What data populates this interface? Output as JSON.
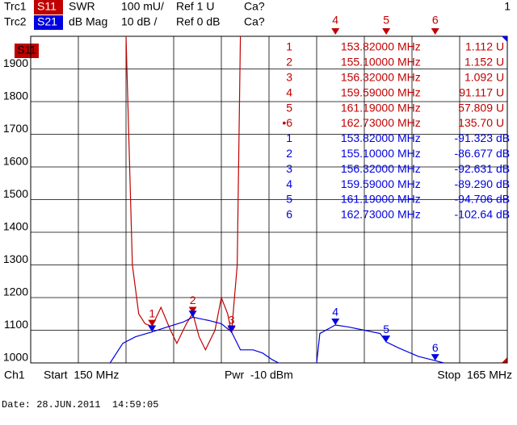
{
  "header": {
    "row1": [
      "Trc1",
      "S11",
      "SWR",
      "100 mU/",
      "Ref 1 U",
      "Ca?"
    ],
    "row2": [
      "Trc2",
      "S21",
      "dB Mag",
      "10 dB /",
      "Ref 0 dB",
      "Ca?"
    ],
    "window": "1"
  },
  "chart_data": {
    "type": "line",
    "trace_label": "S11",
    "xlim": [
      150,
      165
    ],
    "xticks": [
      150,
      151.5,
      153,
      154.5,
      156,
      157.5,
      159,
      160.5,
      162,
      163.5,
      165
    ],
    "ylim": [
      1000,
      2000
    ],
    "yticks": [
      1000,
      1100,
      1200,
      1300,
      1400,
      1500,
      1600,
      1700,
      1800,
      1900
    ],
    "grid": true,
    "series": [
      {
        "name": "S11",
        "color": "#c00000",
        "x": [
          153.0,
          153.2,
          153.4,
          153.6,
          153.82,
          154.1,
          154.4,
          154.6,
          154.9,
          155.1,
          155.3,
          155.5,
          155.8,
          156.0,
          156.2,
          156.32,
          156.5,
          156.6
        ],
        "values": [
          2000,
          1300,
          1150,
          1120,
          1112,
          1170,
          1100,
          1060,
          1120,
          1152,
          1080,
          1040,
          1100,
          1200,
          1150,
          1092,
          1300,
          2000
        ],
        "markers": [
          {
            "label": "1",
            "x": 153.82,
            "y": 1112
          },
          {
            "label": "2",
            "x": 155.1,
            "y": 1152
          },
          {
            "label": "3",
            "x": 156.32,
            "y": 1092
          },
          {
            "label": "4",
            "x": 159.59
          },
          {
            "label": "5",
            "x": 161.19
          },
          {
            "label": "6",
            "x": 162.73
          }
        ]
      },
      {
        "name": "S21",
        "color": "#0000e0",
        "x": [
          152.5,
          152.9,
          153.3,
          153.82,
          154.3,
          154.8,
          155.1,
          155.6,
          156.0,
          156.32,
          156.6,
          157.0,
          157.3,
          157.6,
          157.8,
          158.4,
          159.0,
          159.1,
          159.59,
          160.0,
          160.5,
          161.0,
          161.19,
          161.6,
          162.2,
          162.73,
          163.0
        ],
        "values": [
          1000,
          1060,
          1080,
          1095,
          1110,
          1125,
          1140,
          1130,
          1120,
          1095,
          1040,
          1040,
          1030,
          1010,
          1000,
          null,
          1000,
          1090,
          1116,
          1110,
          1100,
          1090,
          1064,
          1045,
          1020,
          1007,
          1000
        ],
        "markers": [
          {
            "x": 153.82,
            "y": 1095
          },
          {
            "x": 155.1,
            "y": 1140
          },
          {
            "x": 156.32,
            "y": 1095
          },
          {
            "label": "4",
            "x": 159.59,
            "y": 1116
          },
          {
            "label": "5",
            "x": 161.19,
            "y": 1064
          },
          {
            "label": "6",
            "x": 162.73,
            "y": 1007
          }
        ]
      }
    ]
  },
  "marker_table": {
    "groups": [
      {
        "color": "#c00000",
        "rows": [
          [
            "1",
            "153.82000",
            "MHz",
            "1.112",
            "U"
          ],
          [
            "2",
            "155.10000",
            "MHz",
            "1.152",
            "U"
          ],
          [
            "3",
            "156.32000",
            "MHz",
            "1.092",
            "U"
          ],
          [
            "4",
            "159.59000",
            "MHz",
            "91.117",
            "U"
          ],
          [
            "5",
            "161.19000",
            "MHz",
            "57.809",
            "U"
          ],
          [
            "•6",
            "162.73000",
            "MHz",
            "135.70",
            "U"
          ]
        ]
      },
      {
        "color": "#0000e0",
        "rows": [
          [
            "1",
            "153.82000",
            "MHz",
            "-91.323",
            "dB"
          ],
          [
            "2",
            "155.10000",
            "MHz",
            "-86.677",
            "dB"
          ],
          [
            "3",
            "156.32000",
            "MHz",
            "-92.631",
            "dB"
          ],
          [
            "4",
            "159.59000",
            "MHz",
            "-89.290",
            "dB"
          ],
          [
            "5",
            "161.19000",
            "MHz",
            "-94.706",
            "dB"
          ],
          [
            "6",
            "162.73000",
            "MHz",
            "-102.64",
            "dB"
          ]
        ]
      }
    ]
  },
  "footer": {
    "channel": "Ch1",
    "start": "Start  150 MHz",
    "power": "Pwr  -10 dBm",
    "stop": "Stop  165 MHz"
  },
  "date": "Date: 28.JUN.2011  14:59:05"
}
